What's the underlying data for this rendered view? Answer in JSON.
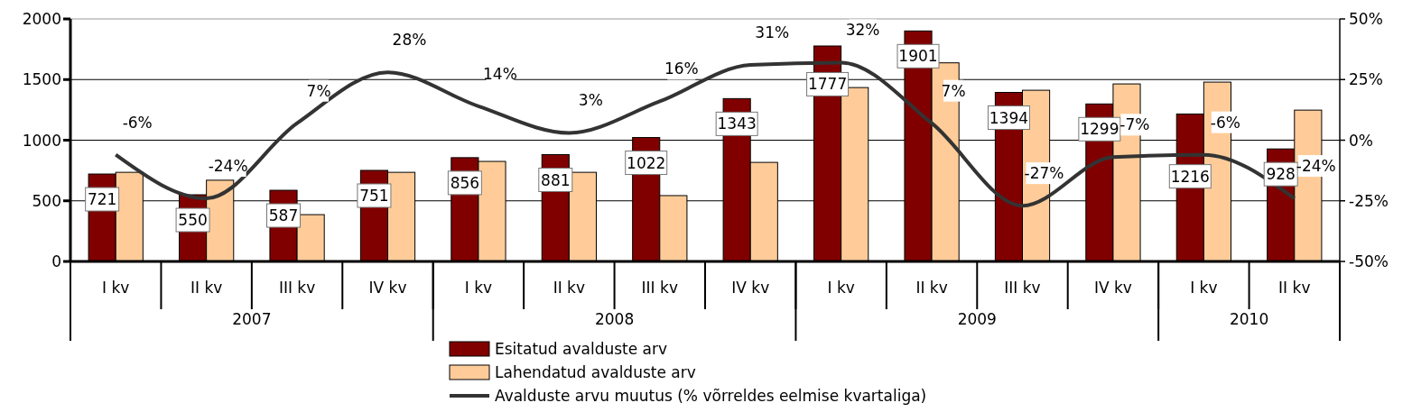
{
  "chart_data": {
    "type": "bar",
    "categories": [
      "I kv",
      "II kv",
      "III kv",
      "IV kv",
      "I kv",
      "II kv",
      "III kv",
      "IV kv",
      "I kv",
      "II kv",
      "III kv",
      "IV kv",
      "I kv",
      "II kv"
    ],
    "annotations": [
      "2007",
      "2008",
      "2009",
      "2010"
    ],
    "series": [
      {
        "name": "Esitatud avalduste arv",
        "color": "#800000",
        "values": [
          721,
          550,
          587,
          751,
          856,
          881,
          1022,
          1343,
          1777,
          1901,
          1394,
          1299,
          1216,
          928
        ],
        "data_labels": true
      },
      {
        "name": "Lahendatud avalduste arv",
        "color": "#ffcc99",
        "values": [
          735,
          670,
          386,
          735,
          825,
          735,
          543,
          817,
          1434,
          1638,
          1412,
          1464,
          1479,
          1248
        ]
      },
      {
        "name": "Avalduste arvu muutus (% võrreldes eelmise kvartaliga)",
        "type": "line",
        "axis": "y2",
        "color": "#333333",
        "values": [
          -6,
          -24,
          7,
          28,
          14,
          3,
          16,
          31,
          32,
          7,
          -27,
          -7,
          -6,
          -24
        ],
        "value_labels": [
          "-6%",
          "-24%",
          "7%",
          "28%",
          "14%",
          "3%",
          "16%",
          "31%",
          "32%",
          "7%",
          "-27%",
          "-7%",
          "-6%",
          "-24%"
        ]
      }
    ],
    "ylim": [
      0,
      2000
    ],
    "yticks": [
      0,
      500,
      1000,
      1500,
      2000
    ],
    "y2lim": [
      -50,
      50
    ],
    "y2ticks": [
      {
        "value": -50,
        "label": "-50%"
      },
      {
        "value": -25,
        "label": "-25%"
      },
      {
        "value": 0,
        "label": "0%"
      },
      {
        "value": 25,
        "label": "25%"
      },
      {
        "value": 50,
        "label": "50%"
      }
    ],
    "grid": "y",
    "legend": "bottom",
    "marker": "none",
    "line_style": "solid"
  }
}
